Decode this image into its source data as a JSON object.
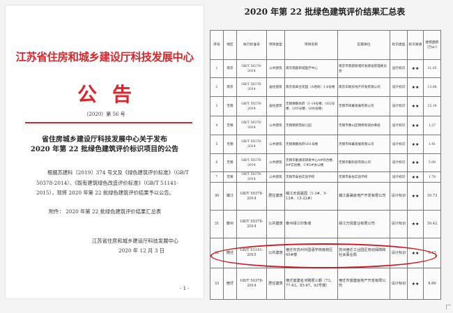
{
  "left_page": {
    "org_name": "江苏省住房和城乡建设厅科技发展中心",
    "notice_title": "公告",
    "doc_number": "〔2020〕第 56 号",
    "subject_line1": "省住房城乡建设厅科技发展中心关于发布",
    "subject_line2": "2020 年第 22 批绿色建筑评价标识项目的公告",
    "body": "根据苏建科〔2019〕374 号文及《绿色建筑评价标准》（GB/T 50378-2014）、《既有建筑绿色改造评价标准》（GB/T 51141-2015），现将 2020 年第 22 批绿色建筑评价结果予以公告。",
    "attachment": "附件： 2020 年第 22 批绿色建筑评价结果汇总表",
    "signature": "江苏省住房和城乡建设厅科技发展中心",
    "date": "2020 年 12 月 3 日",
    "page_number": "- 1 -"
  },
  "right_page": {
    "title": "2020 年第 22 批绿色建筑评价结果汇总表",
    "headers": [
      "序号",
      "地区",
      "执行标准号",
      "项目类型",
      "项目名称",
      "实施单位",
      "标识类型",
      "标识星级",
      "建筑面积（万m²）"
    ],
    "rows": [
      [
        "1",
        "南京",
        "GB/T 50378-2014",
        "公共建筑",
        "南京南部新城医疗中心",
        "南京市南部新城开发建设管理委员会",
        "运行标识",
        "★★",
        "31.05"
      ],
      [
        "2",
        "南京",
        "GB/T 50378-2014",
        "居住建筑",
        "南京揽翠台花园（A地块）1-6号楼",
        "南京华颐房地产开发有限公司",
        "设计标识",
        "★★",
        "13.08"
      ],
      [
        "3",
        "无锡",
        "GB/T 50378-2014",
        "居住建筑",
        "无锡尊鹏尚府（1-14号楼、G02号楼、G05号楼、G06号楼）",
        "无锡市祥翼发展有限公司",
        "设计标识",
        "★★",
        "25.18"
      ],
      [
        "4",
        "无锡",
        "GB/T 50378-2014",
        "公共建筑",
        "无锡锡新苑幼儿园",
        "无锡市惠山区锡桥街道办事处",
        "设计标识",
        "★★",
        "1.27"
      ],
      [
        "5",
        "无锡",
        "GB/T 50378-2014",
        "公共建筑",
        "无锡尊鹏尚府G01号楼",
        "无锡市祥翼发展有限公司",
        "设计标识",
        "★★",
        "1.41"
      ],
      [
        "6",
        "无锡",
        "GB/T 50378-2014",
        "公共建筑",
        "无锡华勤通讯研发中心A#综合楼、B#实验楼、C#D#办公楼",
        "无锡华勤科技有限公司",
        "设计标识",
        "★★",
        "5.08"
      ],
      [
        "7",
        "无锡",
        "GB/T 50378-2014",
        "公共建筑",
        "无锡市泰伯实验学校",
        "无锡市泰伯实验学校",
        "设计标识",
        "★★",
        "1.78"
      ],
      [
        "30",
        "镇江",
        "GB/T 50378-2014",
        "居住建筑",
        "镇江天成嘉园（1-3#、5-12#、15-22#）",
        "镇江嘉晟房地产开发有限公司",
        "设计标识",
        "★★",
        "10.73"
      ],
      [
        "31",
        "泰州",
        "GB/T 50378-2014",
        "公共建筑",
        "泰州靖江印象城",
        "靖江万悦置业有限公司",
        "设计标识",
        "★★",
        "10.42"
      ],
      [
        "32",
        "宿迁",
        "GB/T 51141-2015",
        "公共建筑",
        "宿迁市苏州外国语学校南校区60#楼",
        "苏州宿迁工业园区劳动保障和社会事业局",
        "设计标识",
        "★★",
        "0.43"
      ],
      [
        "33",
        "宿迁",
        "GB/T 50378-2014",
        "居住建筑",
        "宿迁富建名河雅居三期（73、77-83、85-87、92号楼）",
        "宿迁市富建房地产开发有限公司",
        "设计标识",
        "★★",
        "8.86"
      ]
    ],
    "highlighted_row": "32",
    "highlight_color": "#d0161e"
  }
}
